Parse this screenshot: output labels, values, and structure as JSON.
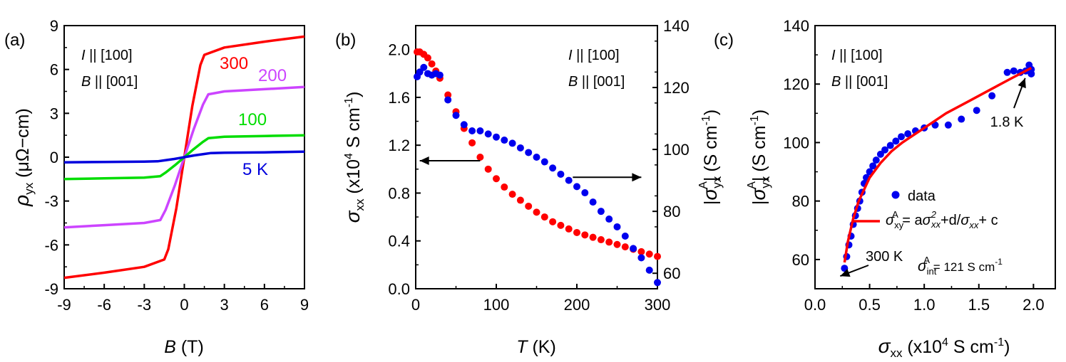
{
  "chart_data": [
    {
      "type": "line",
      "panel_label": "(a)",
      "xlabel": {
        "sym": "B",
        "unit": " (T)"
      },
      "ylabel": {
        "sym": "ρ",
        "sub": "yx",
        "unit": " (μΩ−cm)"
      },
      "xlim": [
        -9,
        9
      ],
      "ylim": [
        -9,
        9
      ],
      "xticks": [
        -9,
        -6,
        -3,
        0,
        3,
        6,
        9
      ],
      "yticks": [
        -9,
        -6,
        -3,
        0,
        3,
        6,
        9
      ],
      "annotations": [
        {
          "sym": "I",
          "text": " || [100]"
        },
        {
          "sym": "B",
          "text": " || [001]"
        }
      ],
      "series": [
        {
          "name": "300",
          "color": "#ff0000",
          "x": [
            -9,
            -6,
            -3,
            -1.5,
            -1.2,
            -0.6,
            0,
            0.6,
            1.2,
            1.5,
            3,
            6,
            9
          ],
          "y": [
            -8.25,
            -7.9,
            -7.5,
            -7.0,
            -6.3,
            -3.5,
            0,
            3.5,
            6.3,
            7.0,
            7.5,
            7.9,
            8.25
          ]
        },
        {
          "name": "200",
          "color": "#cc44ff",
          "x": [
            -9,
            -6,
            -3,
            -1.8,
            -1.4,
            -0.7,
            0,
            0.7,
            1.4,
            1.8,
            3,
            6,
            9
          ],
          "y": [
            -4.8,
            -4.65,
            -4.5,
            -4.3,
            -3.6,
            -1.9,
            0,
            1.9,
            3.6,
            4.3,
            4.5,
            4.65,
            4.8
          ]
        },
        {
          "name": "100",
          "color": "#00dd00",
          "x": [
            -9,
            -6,
            -3,
            -1.8,
            -1.4,
            -0.7,
            0,
            0.7,
            1.4,
            1.8,
            3,
            6,
            9
          ],
          "y": [
            -1.5,
            -1.45,
            -1.4,
            -1.3,
            -1.05,
            -0.55,
            0,
            0.55,
            1.05,
            1.3,
            1.4,
            1.45,
            1.5
          ]
        },
        {
          "name": "5 K",
          "color": "#0000dd",
          "x": [
            -9,
            -6,
            -3,
            -2,
            -1.5,
            -0.75,
            0,
            0.75,
            1.5,
            2,
            3,
            6,
            9
          ],
          "y": [
            -0.35,
            -0.33,
            -0.3,
            -0.28,
            -0.22,
            -0.12,
            0,
            0.12,
            0.22,
            0.28,
            0.3,
            0.33,
            0.38
          ]
        }
      ]
    },
    {
      "type": "scatter",
      "panel_label": "(b)",
      "xlabel": {
        "sym": "T",
        "unit": " (K)"
      },
      "ylabel_left": {
        "sym": "σ",
        "sub": "xx",
        "unit": " (x10",
        "sup": "4",
        "unit2": " S cm",
        "sup2": "-1",
        "close": ")"
      },
      "ylabel_right": {
        "pre": "|",
        "sym": "σ",
        "sub": "yx",
        "sup": "A",
        "post": "|",
        "unit": " (S cm",
        "sup2": "-1",
        "close": ")"
      },
      "xlim": [
        0,
        300
      ],
      "ylim_left": [
        0,
        2.2
      ],
      "ylim_right": [
        55,
        140
      ],
      "xticks": [
        0,
        100,
        200,
        300
      ],
      "yticks_left": [
        "0.0",
        "0.4",
        "0.8",
        "1.2",
        "1.6",
        "2.0"
      ],
      "yticks_right": [
        60,
        80,
        100,
        120,
        140
      ],
      "annotations": [
        {
          "sym": "I",
          "text": " || [100]"
        },
        {
          "sym": "B",
          "text": " || [001]"
        }
      ],
      "series": [
        {
          "name": "σxx",
          "axis": "left",
          "color": "#ff0000",
          "x": [
            1.8,
            5,
            10,
            15,
            20,
            25,
            30,
            40,
            50,
            60,
            70,
            80,
            90,
            100,
            110,
            120,
            130,
            140,
            150,
            160,
            170,
            180,
            190,
            200,
            210,
            220,
            230,
            240,
            250,
            260,
            270,
            280,
            290,
            300
          ],
          "y": [
            1.98,
            1.98,
            1.96,
            1.93,
            1.88,
            1.82,
            1.76,
            1.62,
            1.48,
            1.34,
            1.22,
            1.1,
            1.0,
            0.92,
            0.85,
            0.79,
            0.74,
            0.69,
            0.64,
            0.6,
            0.56,
            0.53,
            0.5,
            0.47,
            0.45,
            0.43,
            0.41,
            0.39,
            0.37,
            0.35,
            0.33,
            0.31,
            0.29,
            0.27
          ]
        },
        {
          "name": "|σyx A|",
          "axis": "right",
          "color": "#0000ee",
          "x": [
            1.8,
            5,
            10,
            15,
            20,
            25,
            30,
            40,
            50,
            60,
            70,
            80,
            90,
            100,
            110,
            120,
            130,
            140,
            150,
            160,
            170,
            180,
            190,
            200,
            210,
            220,
            230,
            240,
            250,
            260,
            270,
            280,
            290,
            300
          ],
          "y": [
            123.5,
            125,
            126.5,
            124.5,
            124,
            124.5,
            124,
            116,
            111,
            108,
            106,
            106,
            105,
            104,
            103,
            102,
            100.5,
            99,
            97.5,
            96,
            94,
            92,
            90,
            88,
            86,
            83,
            80,
            77.5,
            75,
            72,
            68,
            65,
            61,
            57
          ]
        }
      ],
      "arrows": [
        {
          "from": [
            80,
            1.07
          ],
          "to": [
            5,
            1.07
          ],
          "axis": "left"
        },
        {
          "from": [
            195,
            91
          ],
          "to": [
            280,
            91
          ],
          "axis": "right"
        }
      ]
    },
    {
      "type": "scatter",
      "panel_label": "(c)",
      "xlabel": {
        "sym": "σ",
        "sub": "xx",
        "unit": " (x10",
        "sup": "4",
        "unit2": " S cm",
        "sup2": "-1",
        "close": ")"
      },
      "ylabel": {
        "pre": "|",
        "sym": "σ",
        "sub": "yx",
        "sup": "A",
        "post": "|",
        "unit": " (S cm",
        "sup2": "-1",
        "close": ")"
      },
      "xlim": [
        0,
        2.2
      ],
      "ylim": [
        50,
        140
      ],
      "xticks": [
        "0.0",
        "0.5",
        "1.0",
        "1.5",
        "2.0"
      ],
      "yticks": [
        60,
        80,
        100,
        120,
        140
      ],
      "annotations": [
        {
          "sym": "I",
          "text": " || [100]"
        },
        {
          "sym": "B",
          "text": " || [001]"
        }
      ],
      "legend": {
        "data_label": "data",
        "fit_label": {
          "sym": "σ",
          "sub": "xy",
          "sup": "A",
          "eq": " = a",
          "sym2": "σ",
          "sub2": "xx",
          "sup2": "2",
          "mid": "+d/",
          "sym3": "σ",
          "sub3": "xx",
          "end": "+ c"
        }
      },
      "point_labels": [
        {
          "text": "1.8 K",
          "at": [
            1.95,
            123.5
          ]
        },
        {
          "text": "300 K",
          "at": [
            0.27,
            57
          ]
        }
      ],
      "intrinsic_label": {
        "sym": "σ",
        "sub": "int",
        "sup": "A",
        "text": " = 121 S cm",
        "sup2": "-1"
      },
      "series": [
        {
          "name": "data",
          "color": "#0000ee",
          "x": [
            0.27,
            0.29,
            0.31,
            0.33,
            0.35,
            0.37,
            0.39,
            0.41,
            0.43,
            0.45,
            0.47,
            0.5,
            0.53,
            0.56,
            0.6,
            0.64,
            0.69,
            0.74,
            0.79,
            0.85,
            0.92,
            1.0,
            1.1,
            1.22,
            1.34,
            1.48,
            1.62,
            1.76,
            1.82,
            1.88,
            1.93,
            1.96,
            1.98,
            1.98
          ],
          "y": [
            57,
            61,
            65,
            68,
            72,
            75,
            77.5,
            80,
            83,
            86,
            88,
            90,
            92,
            94,
            96,
            97.5,
            99,
            100.5,
            102,
            103,
            104,
            105,
            106,
            106,
            108,
            111,
            116,
            124,
            124.5,
            124,
            124.5,
            126.5,
            125,
            123.5
          ]
        },
        {
          "name": "fit",
          "color": "#ff0000",
          "x": [
            0.27,
            0.3,
            0.35,
            0.4,
            0.5,
            0.6,
            0.7,
            0.8,
            1.0,
            1.2,
            1.4,
            1.6,
            1.8,
            1.98
          ],
          "y": [
            59,
            66,
            74,
            80,
            88,
            93,
            97,
            100,
            105,
            110,
            114,
            118,
            122,
            125.5
          ]
        }
      ]
    }
  ]
}
